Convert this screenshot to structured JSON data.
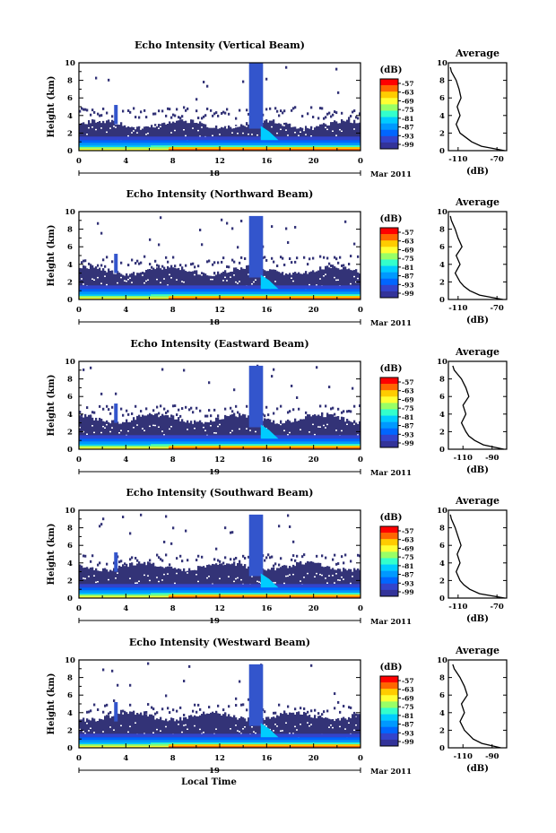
{
  "figure": {
    "xlabel": "Local Time",
    "ylabel": "Height (km)",
    "colorbar_label": "(dB)",
    "colorbar_ticks": [
      "-57",
      "-63",
      "-69",
      "-75",
      "-81",
      "-87",
      "-93",
      "-99"
    ],
    "colorbar_colors": [
      "#ff0000",
      "#ff6600",
      "#ffcc00",
      "#ffff33",
      "#99ff66",
      "#33ffcc",
      "#00ccff",
      "#0099ff",
      "#0066ff",
      "#3344cc",
      "#333399"
    ],
    "background_color": "#333377",
    "avg_title": "Average",
    "avg_xlabel": "(dB)",
    "date_left": "18",
    "date_right": "19",
    "month_label": "Mar 2011"
  },
  "chart_data": [
    {
      "type": "heatmap",
      "title": "Echo Intensity (Vertical Beam)",
      "xlabel": "",
      "ylabel": "Height (km)",
      "x_ticks": [
        "0",
        "4",
        "8",
        "12",
        "16",
        "20",
        "0"
      ],
      "xlim": [
        0,
        24
      ],
      "y_ticks": [
        "0",
        "2",
        "4",
        "6",
        "8",
        "10"
      ],
      "ylim": [
        0,
        10
      ],
      "date_label": "18",
      "month_label": "Mar 2011",
      "echo_top_km": 3.0,
      "plume": {
        "start_hour": 14.5,
        "end_hour": 16.0,
        "top_km": 10
      },
      "avg": {
        "xticks": [
          "-110",
          "-70"
        ],
        "xlim": [
          -120,
          -60
        ],
        "heights": [
          0,
          0.5,
          1,
          1.5,
          2,
          3,
          4,
          5,
          6,
          7,
          8,
          9,
          9.5
        ],
        "values": [
          -62,
          -86,
          -96,
          -102,
          -108,
          -112,
          -108,
          -111,
          -107,
          -109,
          -112,
          -117,
          -118
        ]
      }
    },
    {
      "type": "heatmap",
      "title": "Echo Intensity (Northward Beam)",
      "xlabel": "",
      "ylabel": "Height (km)",
      "x_ticks": [
        "0",
        "4",
        "8",
        "12",
        "16",
        "20",
        "0"
      ],
      "xlim": [
        0,
        24
      ],
      "y_ticks": [
        "0",
        "2",
        "4",
        "6",
        "8",
        "10"
      ],
      "ylim": [
        0,
        10
      ],
      "date_label": "18",
      "month_label": "Mar 2011",
      "echo_top_km": 3.3,
      "plume": {
        "start_hour": 14.5,
        "end_hour": 16.0,
        "top_km": 9.5
      },
      "avg": {
        "xticks": [
          "-110",
          "-70"
        ],
        "xlim": [
          -120,
          -60
        ],
        "heights": [
          0,
          0.5,
          1,
          1.5,
          2,
          3,
          4,
          5,
          6,
          7,
          8,
          9,
          9.5
        ],
        "values": [
          -64,
          -88,
          -98,
          -104,
          -108,
          -113,
          -108,
          -112,
          -106,
          -110,
          -113,
          -117,
          -118
        ]
      }
    },
    {
      "type": "heatmap",
      "title": "Echo Intensity (Eastward Beam)",
      "xlabel": "",
      "ylabel": "Height (km)",
      "x_ticks": [
        "0",
        "4",
        "8",
        "12",
        "16",
        "20",
        "0"
      ],
      "xlim": [
        0,
        24
      ],
      "y_ticks": [
        "0",
        "2",
        "4",
        "6",
        "8",
        "10"
      ],
      "ylim": [
        0,
        10
      ],
      "date_label": "19",
      "month_label": "Mar 2011",
      "echo_top_km": 3.5,
      "plume": {
        "start_hour": 14.5,
        "end_hour": 16.0,
        "top_km": 9.5
      },
      "avg": {
        "xticks": [
          "-110",
          "-90"
        ],
        "xlim": [
          -120,
          -80
        ],
        "heights": [
          0,
          0.5,
          1,
          1.5,
          2,
          3,
          4,
          5,
          6,
          7,
          8,
          9,
          9.5
        ],
        "values": [
          -82,
          -96,
          -102,
          -106,
          -108,
          -111,
          -108,
          -110,
          -106,
          -108,
          -111,
          -116,
          -117
        ]
      }
    },
    {
      "type": "heatmap",
      "title": "Echo Intensity (Southward Beam)",
      "xlabel": "",
      "ylabel": "Height (km)",
      "x_ticks": [
        "0",
        "4",
        "8",
        "12",
        "16",
        "20",
        "0"
      ],
      "xlim": [
        0,
        24
      ],
      "y_ticks": [
        "0",
        "2",
        "4",
        "6",
        "8",
        "10"
      ],
      "ylim": [
        0,
        10
      ],
      "date_label": "19",
      "month_label": "Mar 2011",
      "echo_top_km": 3.6,
      "plume": {
        "start_hour": 14.5,
        "end_hour": 16.0,
        "top_km": 9.5
      },
      "avg": {
        "xticks": [
          "-110",
          "-70"
        ],
        "xlim": [
          -120,
          -60
        ],
        "heights": [
          0,
          0.5,
          1,
          1.5,
          2,
          3,
          4,
          5,
          6,
          7,
          8,
          9,
          9.5
        ],
        "values": [
          -62,
          -88,
          -98,
          -104,
          -108,
          -112,
          -108,
          -111,
          -107,
          -110,
          -113,
          -117,
          -118
        ]
      }
    },
    {
      "type": "heatmap",
      "title": "Echo Intensity (Westward Beam)",
      "xlabel": "Local Time",
      "ylabel": "Height (km)",
      "x_ticks": [
        "0",
        "4",
        "8",
        "12",
        "16",
        "20",
        "0"
      ],
      "xlim": [
        0,
        24
      ],
      "y_ticks": [
        "0",
        "2",
        "4",
        "6",
        "8",
        "10"
      ],
      "ylim": [
        0,
        10
      ],
      "date_label": "19",
      "month_label": "Mar 2011",
      "echo_top_km": 3.6,
      "plume": {
        "start_hour": 14.5,
        "end_hour": 16.0,
        "top_km": 9.5
      },
      "avg": {
        "xticks": [
          "-110",
          "-90"
        ],
        "xlim": [
          -120,
          -80
        ],
        "heights": [
          0,
          0.5,
          1,
          1.5,
          2,
          3,
          4,
          5,
          6,
          7,
          8,
          9,
          9.5
        ],
        "values": [
          -84,
          -97,
          -103,
          -106,
          -109,
          -112,
          -109,
          -111,
          -107,
          -109,
          -112,
          -116,
          -117
        ]
      }
    }
  ]
}
